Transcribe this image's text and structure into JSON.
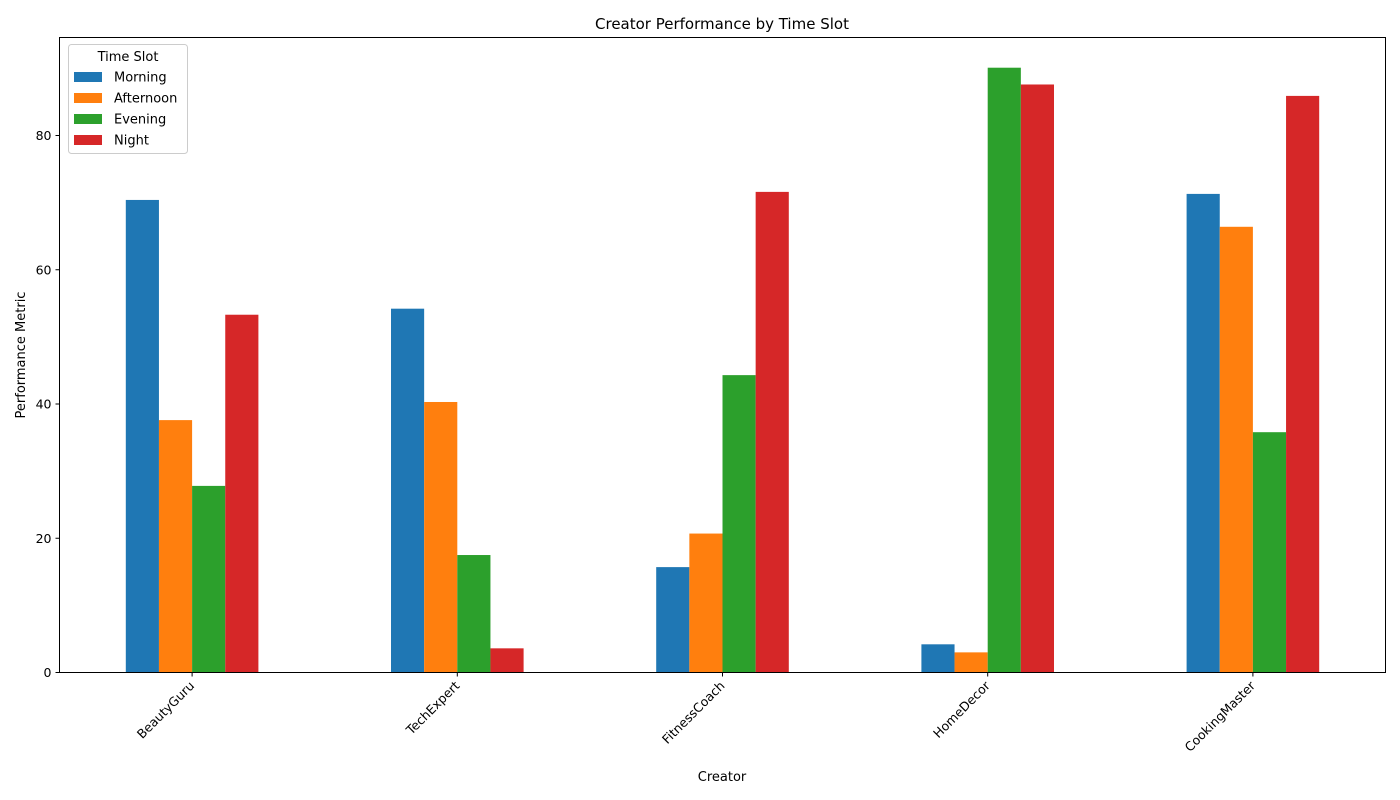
{
  "chart_data": {
    "type": "bar",
    "title": "Creator Performance by Time Slot",
    "xlabel": "Creator",
    "ylabel": "Performance Metric",
    "categories": [
      "BeautyGuru",
      "TechExpert",
      "FitnessCoach",
      "HomeDecor",
      "CookingMaster"
    ],
    "series": [
      {
        "name": "Morning",
        "color": "#1f77b4",
        "values": [
          70.4,
          54.2,
          15.7,
          4.2,
          71.3
        ]
      },
      {
        "name": "Afternoon",
        "color": "#ff7f0e",
        "values": [
          37.6,
          40.3,
          20.7,
          3.0,
          66.4
        ]
      },
      {
        "name": "Evening",
        "color": "#2ca02c",
        "values": [
          27.8,
          17.5,
          44.3,
          90.1,
          35.8
        ]
      },
      {
        "name": "Night",
        "color": "#d62728",
        "values": [
          53.3,
          3.6,
          71.6,
          87.6,
          85.9
        ]
      }
    ],
    "ylim": [
      0,
      94.6
    ],
    "yticks": [
      0,
      20,
      40,
      60,
      80
    ],
    "legend": {
      "title": "Time Slot",
      "placement": "top-left"
    },
    "grid": false
  }
}
